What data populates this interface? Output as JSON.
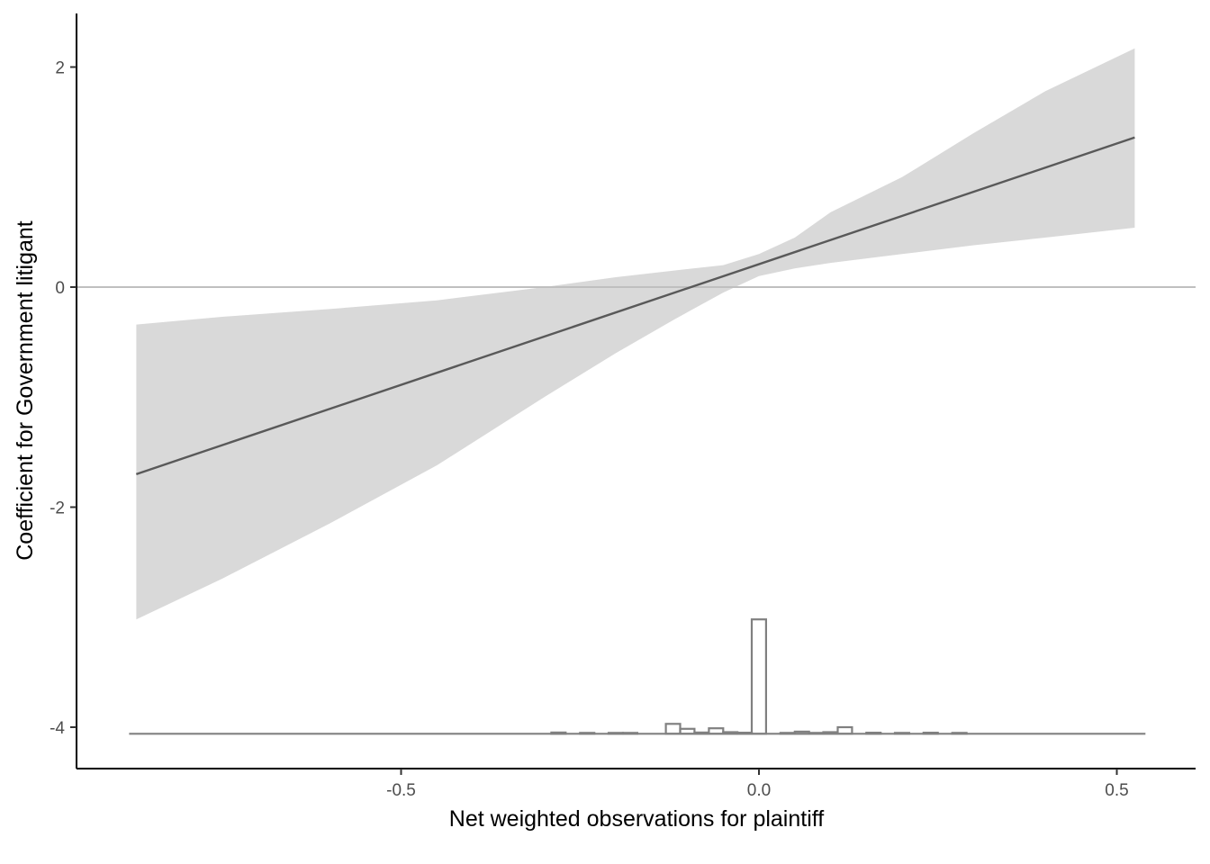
{
  "chart_data": {
    "type": "line",
    "title": "",
    "xlabel": "Net weighted observations for plaintiff",
    "ylabel": "Coefficient for Government litigant",
    "xlim": [
      -0.955,
      0.61
    ],
    "ylim": [
      -4.3,
      2.5
    ],
    "x_ticks": [
      {
        "value": -0.5,
        "label": "-0.5"
      },
      {
        "value": 0.0,
        "label": "0.0"
      },
      {
        "value": 0.5,
        "label": "0.5"
      }
    ],
    "y_ticks": [
      {
        "value": 2,
        "label": "2"
      },
      {
        "value": 0,
        "label": "0"
      },
      {
        "value": -2,
        "label": "-2"
      },
      {
        "value": -4,
        "label": "-4"
      }
    ],
    "grid": false,
    "reference_line": {
      "y": 0,
      "color": "#bfbfbf"
    },
    "series": [
      {
        "kind": "line",
        "color": "#595959",
        "x": [
          -0.87,
          0.525
        ],
        "y": [
          -1.7,
          1.36
        ]
      }
    ],
    "confidence_band": {
      "color": "#d9d9d9",
      "x": [
        -0.87,
        -0.75,
        -0.6,
        -0.45,
        -0.3,
        -0.2,
        -0.12,
        -0.05,
        0.0,
        0.05,
        0.1,
        0.2,
        0.3,
        0.4,
        0.525
      ],
      "lower": [
        -3.02,
        -2.65,
        -2.15,
        -1.62,
        -1.0,
        -0.6,
        -0.3,
        -0.05,
        0.1,
        0.17,
        0.22,
        0.3,
        0.38,
        0.45,
        0.54
      ],
      "upper": [
        -0.34,
        -0.27,
        -0.2,
        -0.12,
        0.0,
        0.09,
        0.15,
        0.2,
        0.3,
        0.45,
        0.68,
        1.0,
        1.4,
        1.78,
        2.17
      ]
    },
    "histogram": {
      "baseline": -4.06,
      "unit_height": 1.0,
      "stroke": "#808080",
      "bin_width": 0.02,
      "bins": [
        {
          "x": -0.28,
          "h": 0.012
        },
        {
          "x": -0.24,
          "h": 0.008
        },
        {
          "x": -0.2,
          "h": 0.008
        },
        {
          "x": -0.18,
          "h": 0.006
        },
        {
          "x": -0.12,
          "h": 0.09
        },
        {
          "x": -0.1,
          "h": 0.045
        },
        {
          "x": -0.08,
          "h": 0.012
        },
        {
          "x": -0.06,
          "h": 0.05
        },
        {
          "x": -0.04,
          "h": 0.015
        },
        {
          "x": -0.02,
          "h": 0.01
        },
        {
          "x": 0.0,
          "h": 1.04
        },
        {
          "x": 0.04,
          "h": 0.006
        },
        {
          "x": 0.06,
          "h": 0.02
        },
        {
          "x": 0.08,
          "h": 0.006
        },
        {
          "x": 0.1,
          "h": 0.015
        },
        {
          "x": 0.12,
          "h": 0.06
        },
        {
          "x": 0.16,
          "h": 0.01
        },
        {
          "x": 0.2,
          "h": 0.008
        },
        {
          "x": 0.24,
          "h": 0.01
        },
        {
          "x": 0.28,
          "h": 0.006
        }
      ],
      "span": [
        -0.88,
        0.54
      ]
    }
  }
}
